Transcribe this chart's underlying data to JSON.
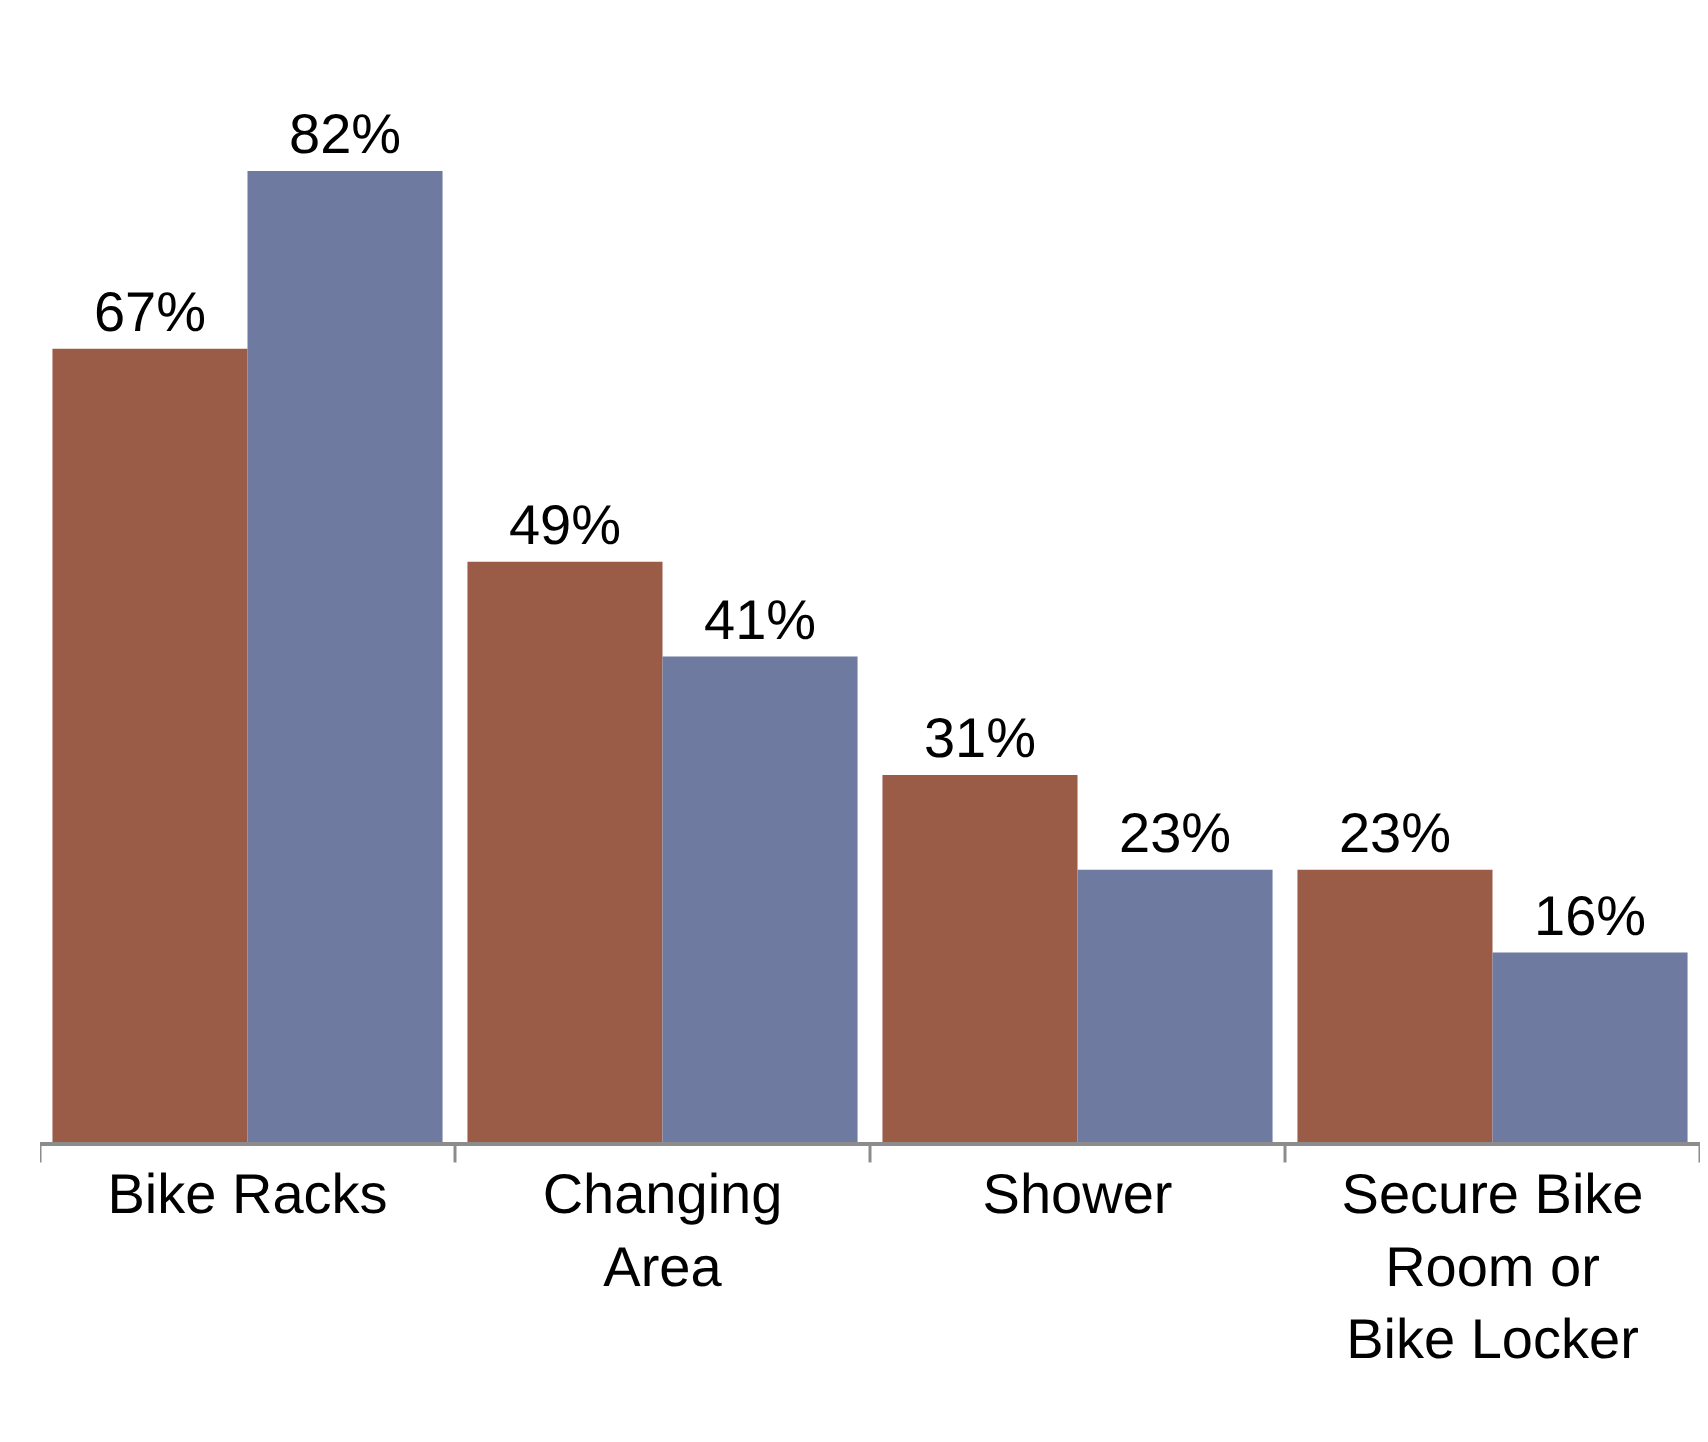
{
  "chart_data": {
    "type": "bar",
    "categories": [
      "Bike Racks",
      "Changing Area",
      "Shower",
      "Secure Bike Room or Bike Locker"
    ],
    "series": [
      {
        "color": "#9a5b47",
        "values": [
          67,
          49,
          31,
          23
        ],
        "value_labels": [
          "67%",
          "49%",
          "31%",
          "23%"
        ]
      },
      {
        "color": "#6f7aa1",
        "values": [
          82,
          41,
          23,
          16
        ],
        "value_labels": [
          "82%",
          "41%",
          "23%",
          "16%"
        ]
      }
    ],
    "legend": false
  }
}
